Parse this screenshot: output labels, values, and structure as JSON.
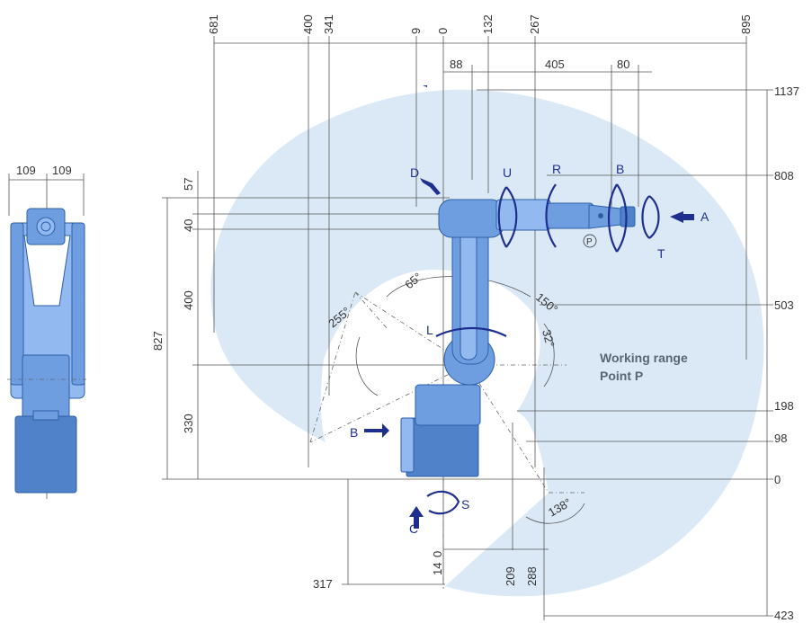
{
  "dimensions": {
    "top": [
      "681",
      "400",
      "341",
      "9",
      "0",
      "132",
      "267",
      "895"
    ],
    "top_second_row": [
      "88",
      "405",
      "80"
    ],
    "right": [
      "1137",
      "808",
      "503",
      "198",
      "98",
      "0",
      "423"
    ],
    "left_vertical": [
      "57",
      "40",
      "400",
      "827",
      "330"
    ],
    "side_view_width": [
      "109",
      "109"
    ],
    "bottom": [
      "317",
      "0",
      "14",
      "209",
      "288"
    ]
  },
  "angles": [
    "65°",
    "150°",
    "255°",
    "32°",
    "138°"
  ],
  "axes": {
    "S": "S",
    "L": "L",
    "U": "U",
    "R": "R",
    "B_wrist": "B",
    "T": "T",
    "view_A": "A",
    "view_B": "B",
    "view_C": "C",
    "view_D": "D",
    "point_P": "P"
  },
  "working_range_label": {
    "line1": "Working range",
    "line2": "Point P"
  },
  "colors": {
    "working_range_fill": "#dbe9f7",
    "robot_body": "#6f9ee0",
    "axis_arrow": "#1f2f8f"
  }
}
